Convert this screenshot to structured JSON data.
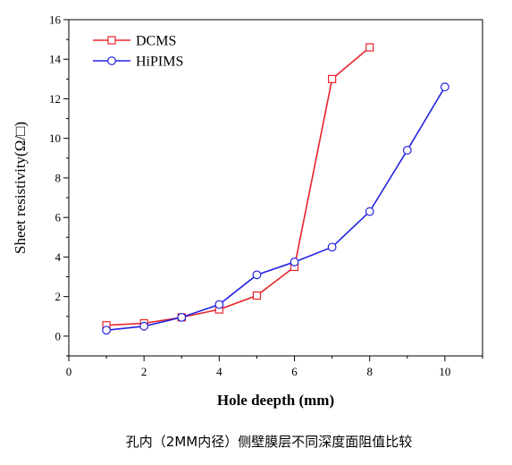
{
  "chart_data": {
    "type": "line",
    "xlabel": "Hole deepth (mm)",
    "ylabel": "Sheet resistivity(Ω/□)",
    "xlim": [
      0,
      11
    ],
    "ylim": [
      -1,
      16
    ],
    "xticks": [
      0,
      2,
      4,
      6,
      8,
      10
    ],
    "yticks": [
      0,
      2,
      4,
      6,
      8,
      10,
      12,
      14,
      16
    ],
    "grid": false,
    "legend_position": "top-left",
    "caption": "孔内（2MM内径）侧壁膜层不同深度面阻值比较",
    "series": [
      {
        "name": "DCMS",
        "color": "#e8232a",
        "marker": "square",
        "x": [
          1,
          2,
          3,
          4,
          5,
          6,
          7,
          8
        ],
        "y": [
          0.55,
          0.65,
          0.95,
          1.35,
          2.05,
          3.5,
          13.0,
          14.6
        ]
      },
      {
        "name": "HiPIMS",
        "color": "#2323e0",
        "marker": "circle",
        "x": [
          1,
          2,
          3,
          4,
          5,
          6,
          7,
          8,
          9,
          10
        ],
        "y": [
          0.3,
          0.5,
          0.95,
          1.6,
          3.1,
          3.75,
          4.5,
          6.3,
          9.4,
          12.6
        ]
      }
    ]
  }
}
